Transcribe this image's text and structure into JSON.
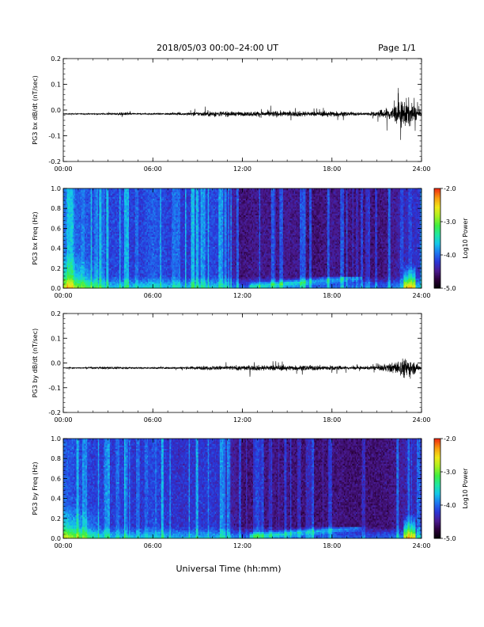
{
  "header": {
    "title": "2018/05/03  00:00–24:00 UT",
    "page": "Page 1/1"
  },
  "xaxis_title": "Universal Time (hh:mm)",
  "colorscale": [
    "#000000",
    "#2a0038",
    "#4a1a90",
    "#2a36d8",
    "#1e78f0",
    "#14c8ea",
    "#20e8a0",
    "#40ee40",
    "#a8f020",
    "#f0e818",
    "#f8a010",
    "#f03010"
  ],
  "chart_data": [
    {
      "type": "line",
      "name": "bx-waveform",
      "ylabel": "PG3 bx dB/dt (nT/sec)",
      "xlim": [
        0,
        24
      ],
      "ylim": [
        -0.2,
        0.2
      ],
      "xticks": [
        "00:00",
        "06:00",
        "12:00",
        "18:00",
        "24:00"
      ],
      "yticks": [
        "-0.2",
        "-0.1",
        "0.0",
        "0.1",
        "0.2"
      ],
      "baseline": -0.015,
      "activity_hours": [
        0,
        1,
        2,
        3,
        4,
        5,
        6,
        7,
        8,
        9,
        10,
        11,
        12,
        13,
        14,
        15,
        16,
        17,
        18,
        19,
        20,
        21,
        22,
        23,
        24
      ],
      "activity_amplitude": [
        0.002,
        0.002,
        0.002,
        0.003,
        0.006,
        0.003,
        0.003,
        0.004,
        0.005,
        0.008,
        0.012,
        0.01,
        0.008,
        0.011,
        0.012,
        0.01,
        0.011,
        0.009,
        0.012,
        0.008,
        0.006,
        0.01,
        0.03,
        0.06,
        0.008
      ]
    },
    {
      "type": "heatmap",
      "name": "bx-spectrogram",
      "ylabel": "PG3 bx Freq (Hz)",
      "xlim": [
        0,
        24
      ],
      "ylim": [
        0.0,
        1.0
      ],
      "xticks": [
        "00:00",
        "06:00",
        "12:00",
        "18:00",
        "24:00"
      ],
      "yticks": [
        "0.0",
        "0.2",
        "0.4",
        "0.6",
        "0.8",
        "1.0"
      ],
      "colorbar": {
        "label": "Log10 Power",
        "ticks": [
          "-2.0",
          "-3.0",
          "-4.0",
          "-5.0"
        ],
        "range": [
          -5.0,
          -2.0
        ]
      },
      "background_level_hours": [
        0,
        1,
        2,
        3,
        4,
        5,
        6,
        7,
        8,
        9,
        10,
        11,
        12,
        13,
        14,
        15,
        16,
        17,
        18,
        19,
        20,
        21,
        22,
        23,
        24
      ],
      "background_level_log_power": [
        -3.9,
        -4.0,
        -4.1,
        -4.15,
        -4.1,
        -4.2,
        -4.0,
        -4.15,
        -4.2,
        -4.15,
        -4.1,
        -4.25,
        -4.55,
        -4.45,
        -4.5,
        -4.45,
        -4.5,
        -4.55,
        -4.45,
        -4.5,
        -4.5,
        -4.55,
        -4.45,
        -4.3,
        -4.2
      ]
    },
    {
      "type": "line",
      "name": "by-waveform",
      "ylabel": "PG3 by dB/dt (nT/sec)",
      "xlim": [
        0,
        24
      ],
      "ylim": [
        -0.2,
        0.2
      ],
      "xticks": [
        "00:00",
        "06:00",
        "12:00",
        "18:00",
        "24:00"
      ],
      "yticks": [
        "-0.2",
        "-0.1",
        "0.0",
        "0.1",
        "0.2"
      ],
      "baseline": -0.02,
      "activity_hours": [
        0,
        1,
        2,
        3,
        4,
        5,
        6,
        7,
        8,
        9,
        10,
        11,
        12,
        13,
        14,
        15,
        16,
        17,
        18,
        19,
        20,
        21,
        22,
        23,
        24
      ],
      "activity_amplitude": [
        0.002,
        0.002,
        0.003,
        0.006,
        0.004,
        0.003,
        0.004,
        0.004,
        0.005,
        0.007,
        0.009,
        0.009,
        0.01,
        0.011,
        0.012,
        0.011,
        0.01,
        0.011,
        0.01,
        0.007,
        0.006,
        0.009,
        0.02,
        0.045,
        0.006
      ]
    },
    {
      "type": "heatmap",
      "name": "by-spectrogram",
      "ylabel": "PG3 by Freq (Hz)",
      "xlim": [
        0,
        24
      ],
      "ylim": [
        0.0,
        1.0
      ],
      "xticks": [
        "00:00",
        "06:00",
        "12:00",
        "18:00",
        "24:00"
      ],
      "yticks": [
        "0.0",
        "0.2",
        "0.4",
        "0.6",
        "0.8",
        "1.0"
      ],
      "colorbar": {
        "label": "Log10 Power",
        "ticks": [
          "-2.0",
          "-3.0",
          "-4.0",
          "-5.0"
        ],
        "range": [
          -5.0,
          -2.0
        ]
      },
      "background_level_hours": [
        0,
        1,
        2,
        3,
        4,
        5,
        6,
        7,
        8,
        9,
        10,
        11,
        12,
        13,
        14,
        15,
        16,
        17,
        18,
        19,
        20,
        21,
        22,
        23,
        24
      ],
      "background_level_log_power": [
        -4.0,
        -4.1,
        -4.15,
        -4.2,
        -4.15,
        -4.25,
        -4.1,
        -4.2,
        -4.25,
        -4.2,
        -4.2,
        -4.3,
        -4.55,
        -4.5,
        -4.5,
        -4.5,
        -4.55,
        -4.55,
        -4.5,
        -4.55,
        -4.55,
        -4.55,
        -4.5,
        -4.35,
        -4.25
      ]
    }
  ]
}
